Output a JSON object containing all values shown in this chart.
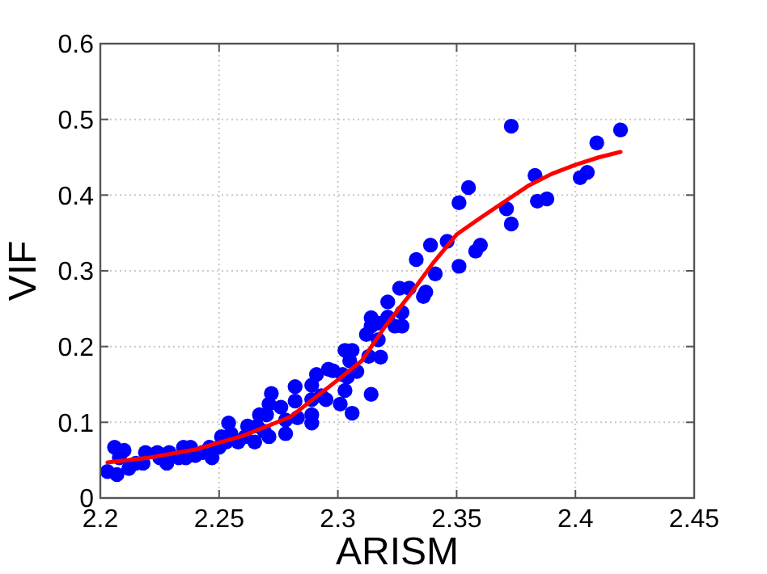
{
  "chart_data": {
    "type": "scatter",
    "xlabel": "ARISM",
    "ylabel": "VIF",
    "xlim": [
      2.2,
      2.45
    ],
    "ylim": [
      0,
      0.6
    ],
    "xticks": [
      2.2,
      2.25,
      2.3,
      2.35,
      2.4,
      2.45
    ],
    "yticks": [
      0,
      0.1,
      0.2,
      0.3,
      0.4,
      0.5,
      0.6
    ],
    "grid": true,
    "series": [
      {
        "color": "#0000ff",
        "marker": "circle",
        "x": [
          2.373,
          2.419,
          2.409,
          2.383,
          2.402,
          2.405,
          2.384,
          2.388,
          2.355,
          2.351,
          2.371,
          2.373,
          2.346,
          2.339,
          2.36,
          2.358,
          2.351,
          2.333,
          2.341,
          2.326,
          2.33,
          2.337,
          2.336,
          2.321,
          2.321,
          2.327,
          2.327,
          2.324,
          2.317,
          2.317,
          2.318,
          2.314,
          2.314,
          2.314,
          2.312,
          2.313,
          2.303,
          2.306,
          2.305,
          2.308,
          2.302,
          2.304,
          2.303,
          2.301,
          2.306,
          2.296,
          2.298,
          2.293,
          2.295,
          2.289,
          2.291,
          2.289,
          2.289,
          2.289,
          2.282,
          2.282,
          2.283,
          2.276,
          2.278,
          2.278,
          2.272,
          2.271,
          2.27,
          2.267,
          2.266,
          2.269,
          2.271,
          2.262,
          2.261,
          2.265,
          2.254,
          2.255,
          2.258,
          2.251,
          2.25,
          2.253,
          2.246,
          2.247,
          2.243,
          2.24,
          2.238,
          2.236,
          2.235,
          2.233,
          2.229,
          2.228,
          2.225,
          2.224,
          2.219,
          2.218,
          2.215,
          2.212,
          2.21,
          2.206,
          2.203,
          2.207,
          2.208
        ],
        "values": [
          0.491,
          0.486,
          0.469,
          0.426,
          0.423,
          0.43,
          0.392,
          0.395,
          0.41,
          0.39,
          0.382,
          0.362,
          0.339,
          0.334,
          0.334,
          0.326,
          0.306,
          0.315,
          0.296,
          0.277,
          0.277,
          0.272,
          0.266,
          0.259,
          0.239,
          0.245,
          0.227,
          0.227,
          0.231,
          0.209,
          0.186,
          0.137,
          0.238,
          0.227,
          0.216,
          0.187,
          0.195,
          0.195,
          0.181,
          0.167,
          0.163,
          0.16,
          0.142,
          0.124,
          0.112,
          0.17,
          0.168,
          0.135,
          0.13,
          0.13,
          0.163,
          0.149,
          0.11,
          0.099,
          0.147,
          0.128,
          0.106,
          0.12,
          0.103,
          0.085,
          0.138,
          0.124,
          0.11,
          0.11,
          0.095,
          0.088,
          0.081,
          0.095,
          0.081,
          0.074,
          0.099,
          0.085,
          0.074,
          0.081,
          0.067,
          0.074,
          0.067,
          0.053,
          0.06,
          0.056,
          0.067,
          0.053,
          0.067,
          0.053,
          0.06,
          0.046,
          0.053,
          0.06,
          0.06,
          0.046,
          0.046,
          0.039,
          0.063,
          0.067,
          0.035,
          0.031,
          0.053
        ]
      },
      {
        "type": "line",
        "color": "#ff0000",
        "marker": "none",
        "line_style": "solid",
        "x": [
          2.203,
          2.22,
          2.24,
          2.26,
          2.28,
          2.3,
          2.31,
          2.32,
          2.33,
          2.34,
          2.35,
          2.36,
          2.37,
          2.38,
          2.39,
          2.4,
          2.41,
          2.419
        ],
        "values": [
          0.047,
          0.053,
          0.064,
          0.082,
          0.107,
          0.156,
          0.181,
          0.227,
          0.267,
          0.31,
          0.348,
          0.37,
          0.391,
          0.412,
          0.428,
          0.44,
          0.45,
          0.457
        ]
      }
    ]
  }
}
